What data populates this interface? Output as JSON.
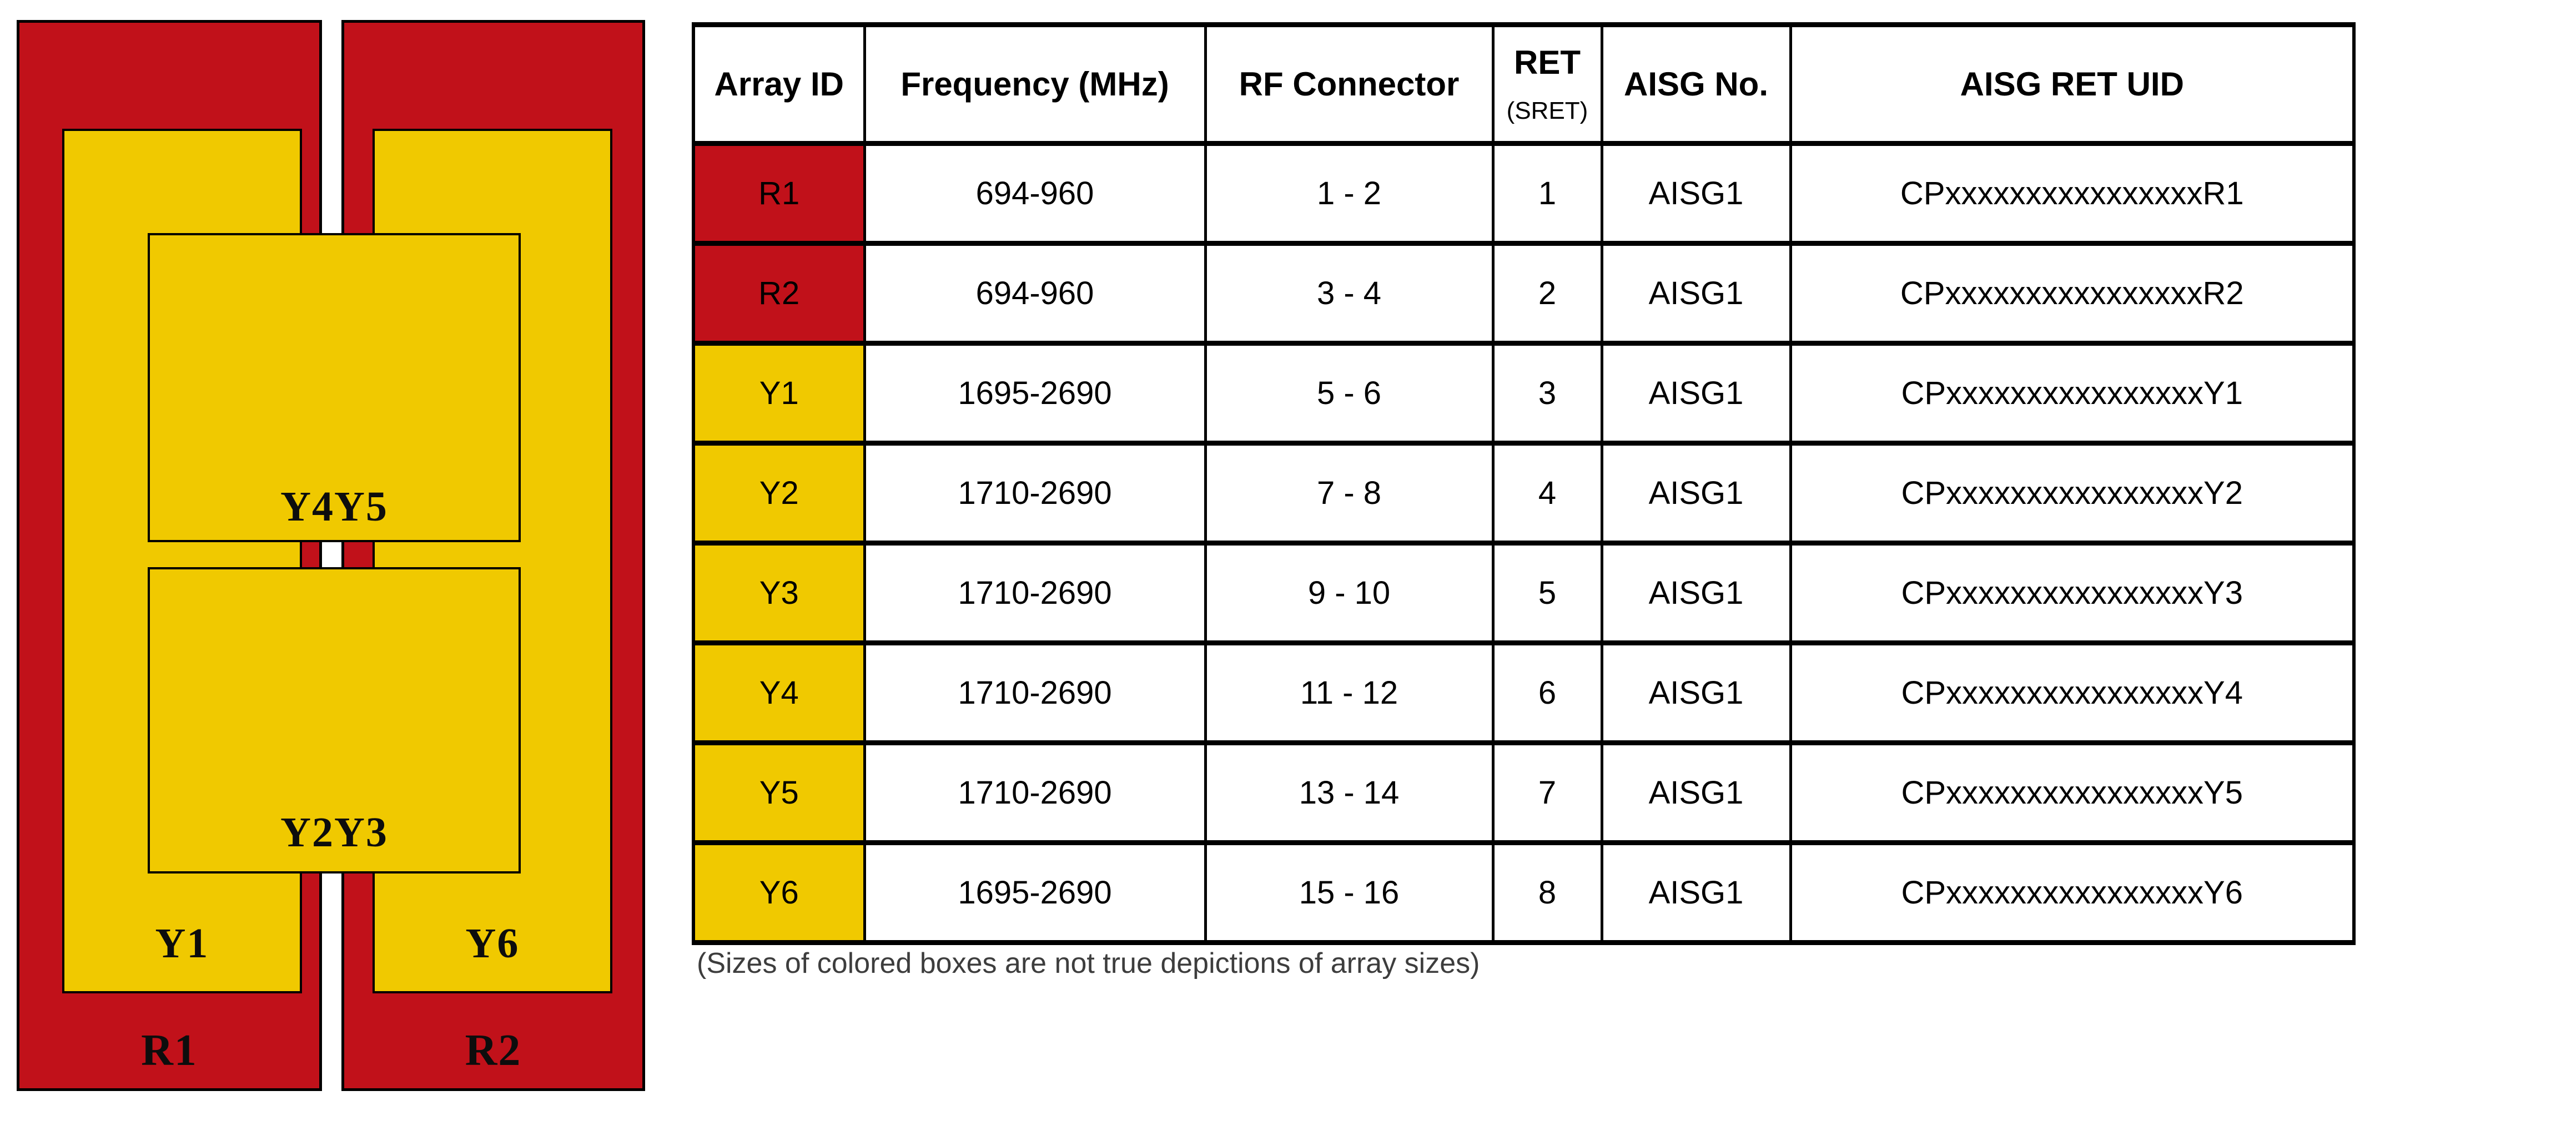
{
  "colors": {
    "red": "#C1111A",
    "yellow": "#F0C900",
    "border": "#000000"
  },
  "diagram": {
    "r1_label": "R1",
    "r2_label": "R2",
    "y1_label": "Y1",
    "y6_label": "Y6",
    "y4y5_label": "Y4Y5",
    "y2y3_label": "Y2Y3"
  },
  "table": {
    "headers": {
      "array_id": "Array ID",
      "frequency": "Frequency (MHz)",
      "rf_connector": "RF Connector",
      "ret": "RET",
      "ret_sub": "(SRET)",
      "aisg_no": "AISG No.",
      "aisg_ret_uid": "AISG RET UID"
    },
    "rows": [
      {
        "array_id": "R1",
        "color": "red",
        "frequency": "694-960",
        "rf_connector": "1 - 2",
        "ret": "1",
        "aisg_no": "AISG1",
        "aisg_ret_uid": "CPxxxxxxxxxxxxxxxxR1"
      },
      {
        "array_id": "R2",
        "color": "red",
        "frequency": "694-960",
        "rf_connector": "3 - 4",
        "ret": "2",
        "aisg_no": "AISG1",
        "aisg_ret_uid": "CPxxxxxxxxxxxxxxxxR2"
      },
      {
        "array_id": "Y1",
        "color": "yellow",
        "frequency": "1695-2690",
        "rf_connector": "5 - 6",
        "ret": "3",
        "aisg_no": "AISG1",
        "aisg_ret_uid": "CPxxxxxxxxxxxxxxxxY1"
      },
      {
        "array_id": "Y2",
        "color": "yellow",
        "frequency": "1710-2690",
        "rf_connector": "7 - 8",
        "ret": "4",
        "aisg_no": "AISG1",
        "aisg_ret_uid": "CPxxxxxxxxxxxxxxxxY2"
      },
      {
        "array_id": "Y3",
        "color": "yellow",
        "frequency": "1710-2690",
        "rf_connector": "9 - 10",
        "ret": "5",
        "aisg_no": "AISG1",
        "aisg_ret_uid": "CPxxxxxxxxxxxxxxxxY3"
      },
      {
        "array_id": "Y4",
        "color": "yellow",
        "frequency": "1710-2690",
        "rf_connector": "11 - 12",
        "ret": "6",
        "aisg_no": "AISG1",
        "aisg_ret_uid": "CPxxxxxxxxxxxxxxxxY4"
      },
      {
        "array_id": "Y5",
        "color": "yellow",
        "frequency": "1710-2690",
        "rf_connector": "13 - 14",
        "ret": "7",
        "aisg_no": "AISG1",
        "aisg_ret_uid": "CPxxxxxxxxxxxxxxxxY5"
      },
      {
        "array_id": "Y6",
        "color": "yellow",
        "frequency": "1695-2690",
        "rf_connector": "15 - 16",
        "ret": "8",
        "aisg_no": "AISG1",
        "aisg_ret_uid": "CPxxxxxxxxxxxxxxxxY6"
      }
    ]
  },
  "note": "(Sizes of colored boxes are not true depictions of array sizes)"
}
